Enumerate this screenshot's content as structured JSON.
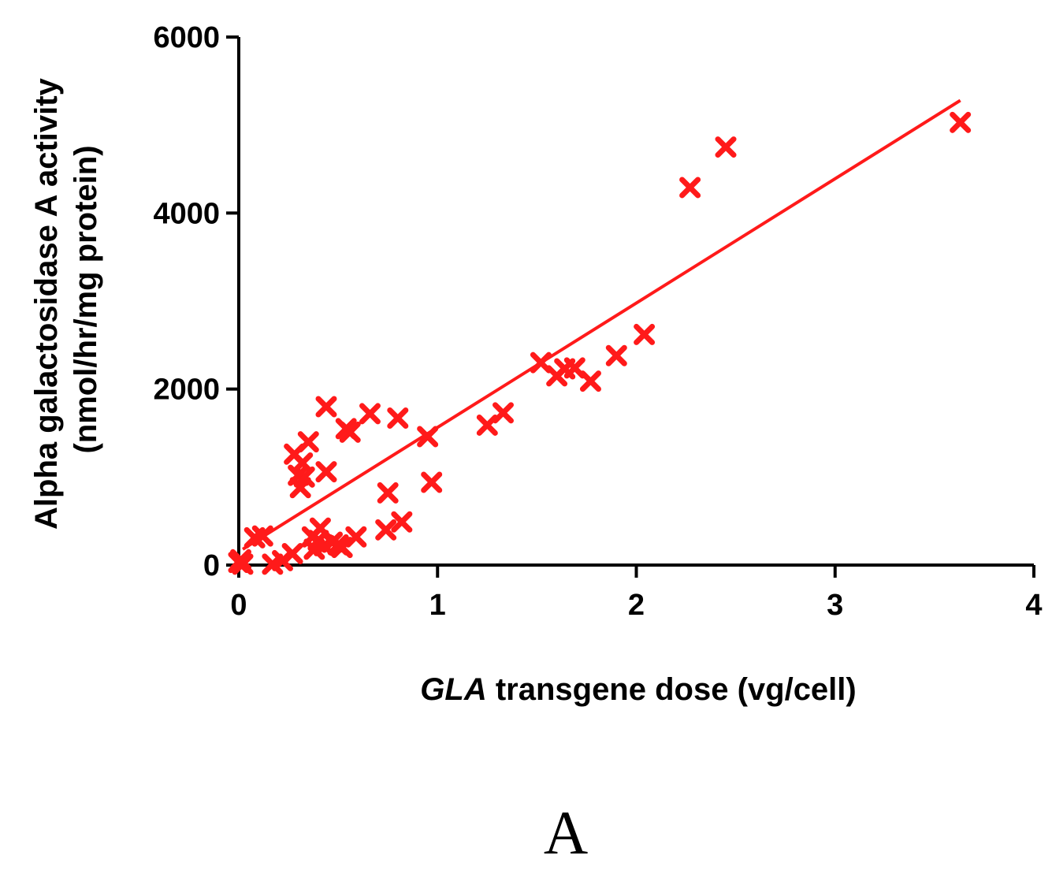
{
  "chart_data": {
    "type": "scatter",
    "title": "",
    "xlabel_italic": "GLA",
    "xlabel_rest": " transgene dose (vg/cell)",
    "ylabel_line1": "Alpha galactosidase A activity",
    "ylabel_line2": "(nmol/hr/mg protein)",
    "xlim": [
      0,
      4
    ],
    "ylim": [
      0,
      6000
    ],
    "x_ticks": [
      0,
      1,
      2,
      3,
      4
    ],
    "y_ticks": [
      0,
      2000,
      4000,
      6000
    ],
    "x_tick_labels": [
      "0",
      "1",
      "2",
      "3",
      "4"
    ],
    "y_tick_labels": [
      "0",
      "2000",
      "4000",
      "6000"
    ],
    "grid": false,
    "legend": "none",
    "panel_label": "A",
    "marker": "x",
    "color": "#ff1a1a",
    "fit_line": {
      "x": [
        0.02,
        3.63
      ],
      "y": [
        180,
        5280
      ]
    },
    "points": [
      {
        "x": 0.0,
        "y": 30
      },
      {
        "x": 0.01,
        "y": 60
      },
      {
        "x": 0.02,
        "y": 10
      },
      {
        "x": 0.08,
        "y": 310
      },
      {
        "x": 0.12,
        "y": 330
      },
      {
        "x": 0.17,
        "y": 10
      },
      {
        "x": 0.22,
        "y": 50
      },
      {
        "x": 0.27,
        "y": 130
      },
      {
        "x": 0.28,
        "y": 1260
      },
      {
        "x": 0.3,
        "y": 1020
      },
      {
        "x": 0.31,
        "y": 880
      },
      {
        "x": 0.32,
        "y": 1160
      },
      {
        "x": 0.33,
        "y": 1000
      },
      {
        "x": 0.35,
        "y": 1400
      },
      {
        "x": 0.37,
        "y": 320
      },
      {
        "x": 0.38,
        "y": 180
      },
      {
        "x": 0.4,
        "y": 280
      },
      {
        "x": 0.41,
        "y": 420
      },
      {
        "x": 0.43,
        "y": 220
      },
      {
        "x": 0.44,
        "y": 1060
      },
      {
        "x": 0.44,
        "y": 1800
      },
      {
        "x": 0.47,
        "y": 260
      },
      {
        "x": 0.5,
        "y": 230
      },
      {
        "x": 0.52,
        "y": 200
      },
      {
        "x": 0.54,
        "y": 1550
      },
      {
        "x": 0.56,
        "y": 1510
      },
      {
        "x": 0.59,
        "y": 320
      },
      {
        "x": 0.66,
        "y": 1720
      },
      {
        "x": 0.74,
        "y": 400
      },
      {
        "x": 0.75,
        "y": 820
      },
      {
        "x": 0.8,
        "y": 1670
      },
      {
        "x": 0.82,
        "y": 490
      },
      {
        "x": 0.95,
        "y": 1460
      },
      {
        "x": 0.97,
        "y": 940
      },
      {
        "x": 1.25,
        "y": 1590
      },
      {
        "x": 1.33,
        "y": 1730
      },
      {
        "x": 1.52,
        "y": 2300
      },
      {
        "x": 1.6,
        "y": 2150
      },
      {
        "x": 1.64,
        "y": 2230
      },
      {
        "x": 1.69,
        "y": 2240
      },
      {
        "x": 1.77,
        "y": 2090
      },
      {
        "x": 1.9,
        "y": 2380
      },
      {
        "x": 2.04,
        "y": 2620
      },
      {
        "x": 2.27,
        "y": 4290
      },
      {
        "x": 2.45,
        "y": 4750
      },
      {
        "x": 3.63,
        "y": 5030
      }
    ]
  }
}
